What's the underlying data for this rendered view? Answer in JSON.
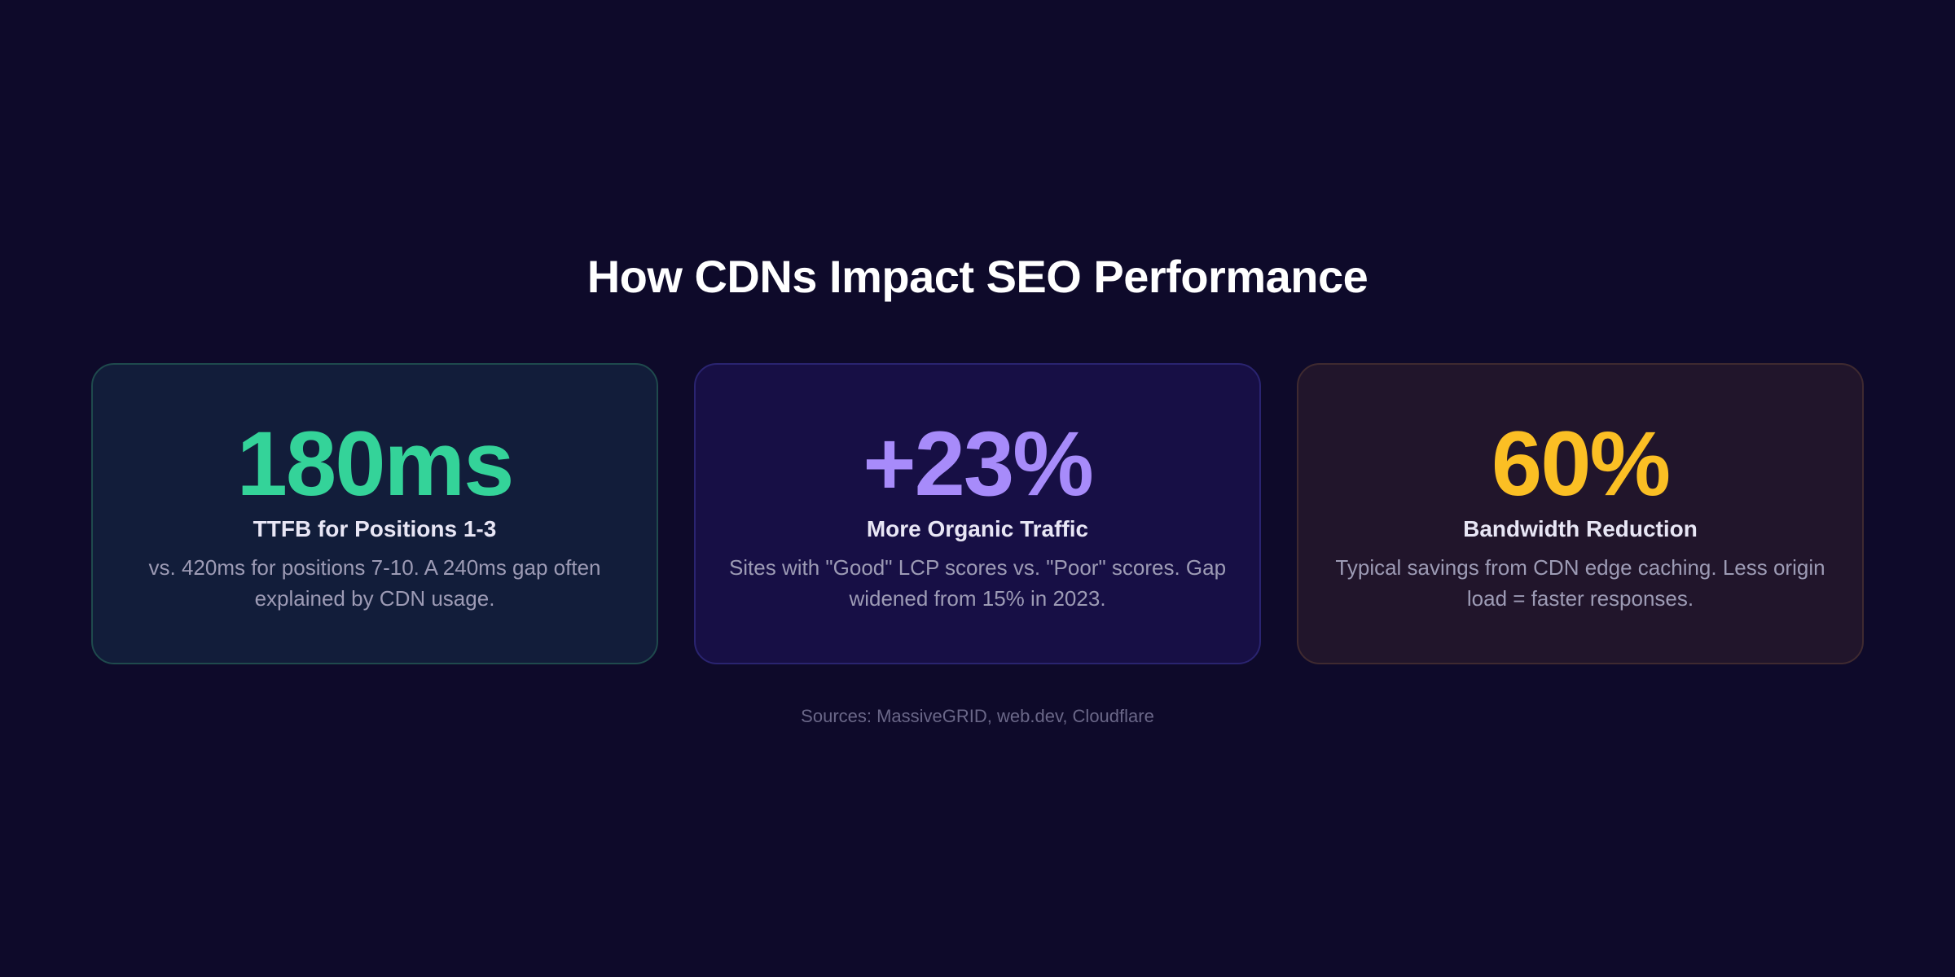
{
  "title": "How CDNs Impact SEO Performance",
  "cards": [
    {
      "stat": "180ms",
      "label": "TTFB for Positions 1-3",
      "description": "vs. 420ms for positions 7-10. A 240ms gap often explained by CDN usage.",
      "accent_color": "#34d399",
      "bg_color": "#121d3a",
      "border_color": "#1f4a4d"
    },
    {
      "stat": "+23%",
      "label": "More Organic Traffic",
      "description": "Sites with \"Good\" LCP scores vs. \"Poor\" scores. Gap widened from 15% in 2023.",
      "accent_color": "#a78bfa",
      "bg_color": "#170f45",
      "border_color": "#2a2470"
    },
    {
      "stat": "60%",
      "label": "Bandwidth Reduction",
      "description": "Typical savings from CDN edge caching. Less origin load = faster responses.",
      "accent_color": "#fbbf24",
      "bg_color": "#21152b",
      "border_color": "#3f2a30"
    }
  ],
  "sources": "Sources: MassiveGRID, web.dev, Cloudflare"
}
